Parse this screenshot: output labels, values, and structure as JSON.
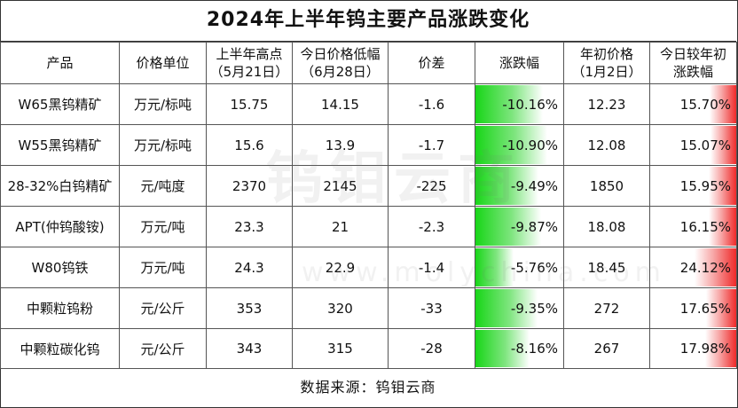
{
  "title": "2024年上半年钨主要产品涨跌变化",
  "headers": [
    [
      "产品"
    ],
    [
      "价格单位"
    ],
    [
      "上半年高点",
      "（5月21日）"
    ],
    [
      "今日价格低幅",
      "（6月28日）"
    ],
    [
      "价差"
    ],
    [
      "涨跌幅"
    ],
    [
      "年初价格",
      "（1月2日）"
    ],
    [
      "今日较年初",
      "涨跌幅"
    ]
  ],
  "rows": [
    {
      "product": "W65黑钨精矿",
      "unit": "万元/标吨",
      "high": "15.75",
      "today": "14.15",
      "diff": "-1.6",
      "change": "-10.16%",
      "change_val": -10.16,
      "start": "12.23",
      "ytd": "15.70%",
      "ytd_val": 15.7
    },
    {
      "product": "W55黑钨精矿",
      "unit": "万元/标吨",
      "high": "15.6",
      "today": "13.9",
      "diff": "-1.7",
      "change": "-10.90%",
      "change_val": -10.9,
      "start": "12.08",
      "ytd": "15.07%",
      "ytd_val": 15.07
    },
    {
      "product": "28-32%白钨精矿",
      "unit": "元/吨度",
      "high": "2370",
      "today": "2145",
      "diff": "-225",
      "change": "-9.49%",
      "change_val": -9.49,
      "start": "1850",
      "ytd": "15.95%",
      "ytd_val": 15.95
    },
    {
      "product": "APT(仲钨酸铵)",
      "unit": "万元/吨",
      "high": "23.3",
      "today": "21",
      "diff": "-2.3",
      "change": "-9.87%",
      "change_val": -9.87,
      "start": "18.08",
      "ytd": "16.15%",
      "ytd_val": 16.15
    },
    {
      "product": "W80钨铁",
      "unit": "万元/吨",
      "high": "24.3",
      "today": "22.9",
      "diff": "-1.4",
      "change": "-5.76%",
      "change_val": -5.76,
      "start": "18.45",
      "ytd": "24.12%",
      "ytd_val": 24.12
    },
    {
      "product": "中颗粒钨粉",
      "unit": "元/公斤",
      "high": "353",
      "today": "320",
      "diff": "-33",
      "change": "-9.35%",
      "change_val": -9.35,
      "start": "272",
      "ytd": "17.65%",
      "ytd_val": 17.65
    },
    {
      "product": "中颗粒碳化钨",
      "unit": "元/公斤",
      "high": "343",
      "today": "315",
      "diff": "-28",
      "change": "-8.16%",
      "change_val": -8.16,
      "start": "267",
      "ytd": "17.98%",
      "ytd_val": 17.98
    }
  ],
  "footer": "数据来源：钨钼云商",
  "watermark": "钨钼云商",
  "watermark_url": "www.molychina.com",
  "colors": {
    "negative_bar": "#18d618",
    "positive_bar": "#ef2a2a"
  }
}
